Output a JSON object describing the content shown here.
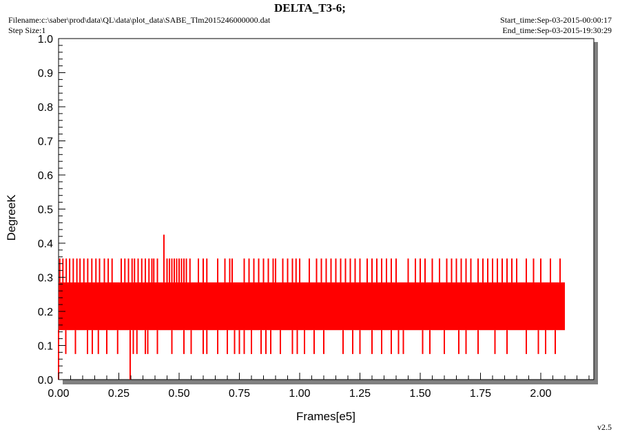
{
  "chart_data": {
    "type": "line",
    "title": "DELTA_T3-6;",
    "filename": "Filename:c:\\saber\\prod\\data\\QL\\data\\plot_data\\SABE_Tlm2015246000000.dat",
    "step_size": "Step Size:1",
    "start_time": "Start_time:Sep-03-2015-00:00:17",
    "end_time": "End_time:Sep-03-2015-19:30:29",
    "version": "v2.5",
    "xlabel": "Frames[e5]",
    "ylabel": "DegreeK",
    "xlim": [
      0.0,
      2.22
    ],
    "ylim": [
      0.0,
      1.0
    ],
    "x_ticks": [
      "0.00",
      "0.25",
      "0.50",
      "0.75",
      "1.00",
      "1.25",
      "1.50",
      "1.75",
      "2.00"
    ],
    "y_ticks": [
      "0.0",
      "0.1",
      "0.2",
      "0.3",
      "0.4",
      "0.5",
      "0.6",
      "0.7",
      "0.8",
      "0.9",
      "1.0"
    ],
    "line_color": "#ff0000",
    "series": [
      {
        "x_start": 0.0,
        "x_end": 2.1,
        "base_band": [
          0.145,
          0.285
        ],
        "spike_high_value": 0.355,
        "spike_low_value": 0.075,
        "spike_high_x": [
          0.005,
          0.018,
          0.032,
          0.046,
          0.061,
          0.076,
          0.089,
          0.105,
          0.121,
          0.138,
          0.155,
          0.17,
          0.19,
          0.206,
          0.222,
          0.26,
          0.275,
          0.29,
          0.305,
          0.315,
          0.33,
          0.345,
          0.36,
          0.375,
          0.387,
          0.395,
          0.41,
          0.45,
          0.46,
          0.47,
          0.48,
          0.49,
          0.5,
          0.51,
          0.52,
          0.53,
          0.545,
          0.58,
          0.6,
          0.615,
          0.66,
          0.69,
          0.71,
          0.72,
          0.77,
          0.79,
          0.81,
          0.83,
          0.85,
          0.87,
          0.89,
          0.9,
          0.93,
          0.95,
          0.97,
          0.985,
          1.0,
          1.04,
          1.07,
          1.09,
          1.11,
          1.13,
          1.15,
          1.17,
          1.19,
          1.21,
          1.23,
          1.25,
          1.28,
          1.3,
          1.32,
          1.34,
          1.36,
          1.38,
          1.4,
          1.45,
          1.48,
          1.5,
          1.52,
          1.55,
          1.58,
          1.61,
          1.63,
          1.65,
          1.67,
          1.69,
          1.71,
          1.74,
          1.76,
          1.78,
          1.8,
          1.82,
          1.84,
          1.86,
          1.88,
          1.9,
          1.94,
          1.97,
          2.0,
          2.04,
          2.08
        ],
        "spike_low_x": [
          0.03,
          0.07,
          0.12,
          0.14,
          0.165,
          0.2,
          0.245,
          0.31,
          0.325,
          0.36,
          0.37,
          0.41,
          0.47,
          0.52,
          0.55,
          0.6,
          0.615,
          0.66,
          0.7,
          0.73,
          0.75,
          0.77,
          0.8,
          0.84,
          0.86,
          0.88,
          0.92,
          0.97,
          0.99,
          1.02,
          1.06,
          1.1,
          1.18,
          1.22,
          1.25,
          1.3,
          1.34,
          1.38,
          1.41,
          1.43,
          1.51,
          1.54,
          1.6,
          1.66,
          1.69,
          1.74,
          1.81,
          1.86,
          1.94,
          1.99,
          2.02,
          2.06
        ],
        "outliers": [
          {
            "x": 0.437,
            "y": 0.425
          },
          {
            "x": 0.297,
            "y": 0.0
          },
          {
            "x": 0.0,
            "y": 0.0
          }
        ]
      }
    ]
  }
}
